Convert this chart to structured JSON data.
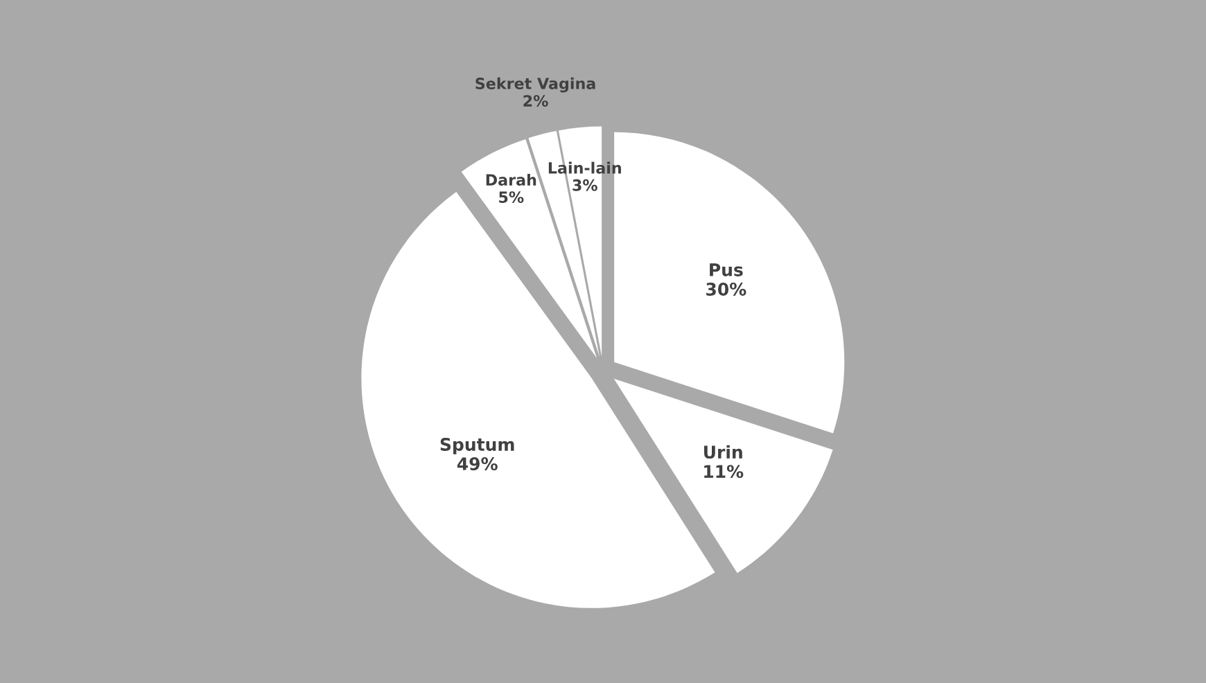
{
  "chart_data": {
    "type": "pie",
    "categories": [
      "Pus",
      "Urin",
      "Sputum",
      "Darah",
      "Sekret Vagina",
      "Lain-lain"
    ],
    "values": [
      30,
      11,
      49,
      5,
      2,
      3
    ],
    "value_labels": [
      "30%",
      "11%",
      "49%",
      "5%",
      "2%",
      "3%"
    ],
    "colors": [
      "#ffffff",
      "#ffffff",
      "#ffffff",
      "#ffffff",
      "#ffffff",
      "#ffffff"
    ]
  }
}
